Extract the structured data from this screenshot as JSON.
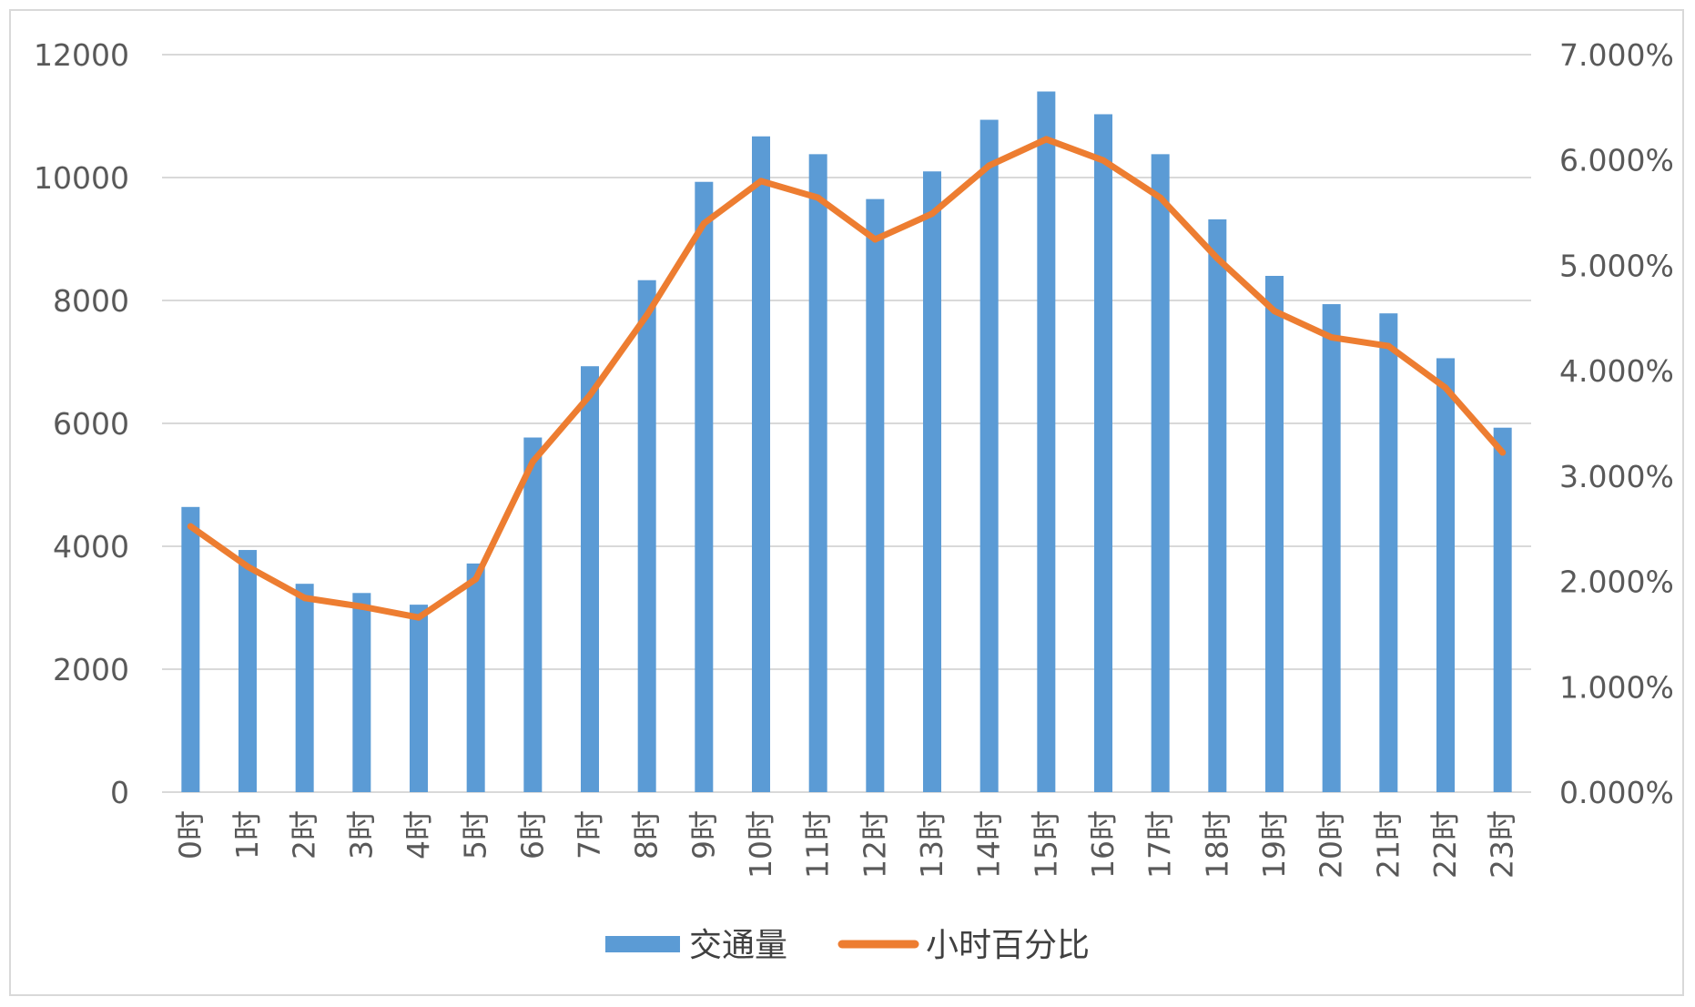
{
  "chart_data": {
    "type": "bar+line",
    "categories": [
      "0时",
      "1时",
      "2时",
      "3时",
      "4时",
      "5时",
      "6时",
      "7时",
      "8时",
      "9时",
      "10时",
      "11时",
      "12时",
      "13时",
      "14时",
      "15时",
      "16时",
      "17时",
      "18时",
      "19时",
      "20时",
      "21时",
      "22时",
      "23时"
    ],
    "series": [
      {
        "name": "交通量",
        "type": "bar",
        "axis": "left",
        "color": "#5b9bd5",
        "values": [
          4640,
          3940,
          3390,
          3240,
          3050,
          3720,
          5770,
          6930,
          8330,
          9930,
          10670,
          10380,
          9650,
          10100,
          10940,
          11400,
          11030,
          10380,
          9320,
          8400,
          7940,
          7790,
          7060,
          5930
        ]
      },
      {
        "name": "小时百分比",
        "type": "line",
        "axis": "right",
        "color": "#ed7d31",
        "values": [
          2.522,
          2.141,
          1.843,
          1.761,
          1.658,
          2.022,
          3.137,
          3.767,
          4.528,
          5.398,
          5.8,
          5.642,
          5.246,
          5.49,
          5.947,
          6.197,
          5.996,
          5.642,
          5.066,
          4.566,
          4.316,
          4.234,
          3.838,
          3.223
        ]
      }
    ],
    "y_left": {
      "min": 0,
      "max": 12000,
      "ticks": [
        0,
        2000,
        4000,
        6000,
        8000,
        10000,
        12000
      ]
    },
    "y_right": {
      "min": 0,
      "max": 7,
      "ticks": [
        "0.000%",
        "1.000%",
        "2.000%",
        "3.000%",
        "4.000%",
        "5.000%",
        "6.000%",
        "7.000%"
      ]
    },
    "grid": true,
    "legend": "bottom",
    "gridline_color": "#d9d9d9"
  }
}
